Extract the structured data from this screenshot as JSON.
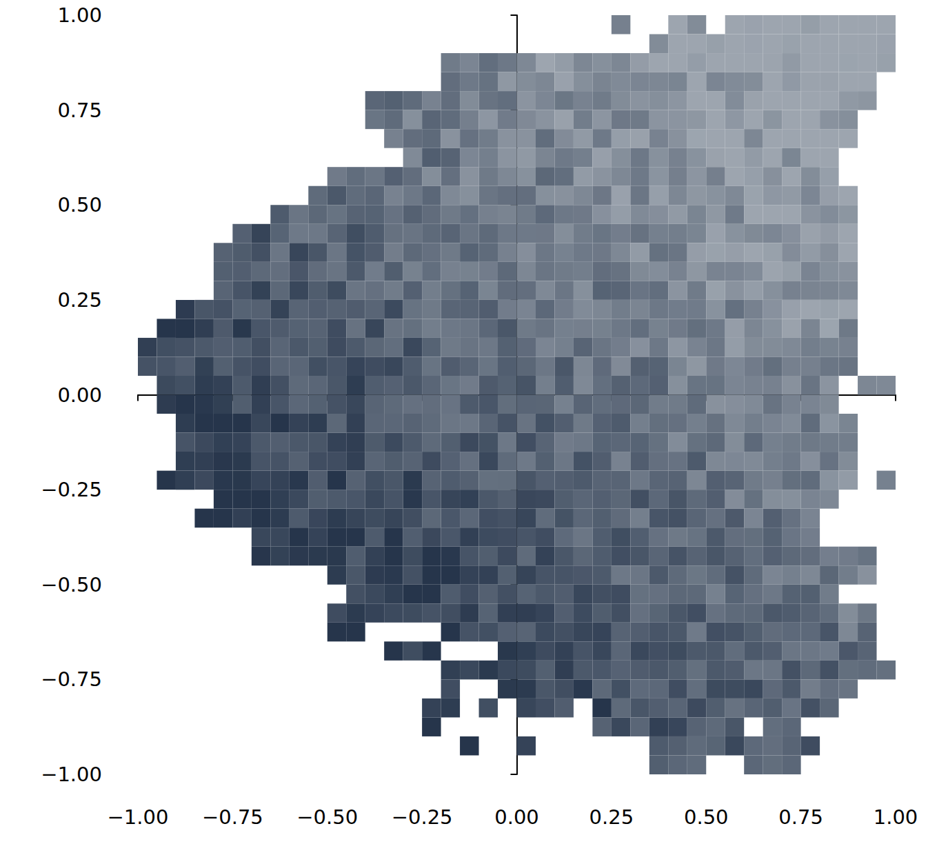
{
  "chart_data": {
    "type": "image_grid",
    "cell_size": 0.05,
    "color": "#26354b",
    "grid": false,
    "xlim": [
      -1,
      1
    ],
    "ylim": [
      -1,
      1
    ],
    "xticks": [
      {
        "value": -1,
        "label": "−1.00"
      },
      {
        "value": -0.75,
        "label": "−0.75"
      },
      {
        "value": -0.5,
        "label": "−0.50"
      },
      {
        "value": -0.25,
        "label": "−0.25"
      },
      {
        "value": 0,
        "label": "0.00"
      },
      {
        "value": 0.25,
        "label": "0.25"
      },
      {
        "value": 0.5,
        "label": "0.50"
      },
      {
        "value": 0.75,
        "label": "0.75"
      },
      {
        "value": 1,
        "label": "1.00"
      }
    ],
    "yticks": [
      {
        "value": -1,
        "label": "−1.00"
      },
      {
        "value": -0.75,
        "label": "−0.75"
      },
      {
        "value": -0.5,
        "label": "−0.50"
      },
      {
        "value": -0.25,
        "label": "−0.25"
      },
      {
        "value": 0,
        "label": "0.00"
      },
      {
        "value": 0.25,
        "label": "0.25"
      },
      {
        "value": 0.5,
        "label": "0.50"
      },
      {
        "value": 0.75,
        "label": "0.75"
      },
      {
        "value": 1,
        "label": "1.00"
      }
    ],
    "rows": [
      {
        "y": 0.975,
        "runs": [
          [
            0.275,
            0.275
          ],
          [
            0.425,
            0.475
          ],
          [
            0.575,
            0.975
          ]
        ]
      },
      {
        "y": 0.925,
        "runs": [
          [
            0.375,
            0.975
          ]
        ]
      },
      {
        "y": 0.875,
        "runs": [
          [
            -0.175,
            0.975
          ]
        ]
      },
      {
        "y": 0.825,
        "runs": [
          [
            -0.175,
            0.925
          ]
        ]
      },
      {
        "y": 0.775,
        "runs": [
          [
            -0.375,
            0.925
          ]
        ]
      },
      {
        "y": 0.725,
        "runs": [
          [
            -0.375,
            0.875
          ]
        ]
      },
      {
        "y": 0.675,
        "runs": [
          [
            -0.325,
            0.875
          ]
        ]
      },
      {
        "y": 0.625,
        "runs": [
          [
            -0.275,
            0.825
          ]
        ]
      },
      {
        "y": 0.575,
        "runs": [
          [
            -0.475,
            0.825
          ]
        ]
      },
      {
        "y": 0.525,
        "runs": [
          [
            -0.525,
            0.775
          ],
          [
            0.825,
            0.875
          ]
        ]
      },
      {
        "y": 0.475,
        "runs": [
          [
            -0.625,
            0.875
          ]
        ]
      },
      {
        "y": 0.425,
        "runs": [
          [
            -0.725,
            0.875
          ]
        ]
      },
      {
        "y": 0.375,
        "runs": [
          [
            -0.775,
            0.875
          ]
        ]
      },
      {
        "y": 0.325,
        "runs": [
          [
            -0.775,
            0.875
          ]
        ]
      },
      {
        "y": 0.275,
        "runs": [
          [
            -0.775,
            0.875
          ]
        ]
      },
      {
        "y": 0.225,
        "runs": [
          [
            -0.875,
            0.875
          ]
        ]
      },
      {
        "y": 0.175,
        "runs": [
          [
            -0.925,
            0.875
          ]
        ]
      },
      {
        "y": 0.125,
        "runs": [
          [
            -0.975,
            0.875
          ]
        ]
      },
      {
        "y": 0.075,
        "runs": [
          [
            -0.975,
            0.875
          ]
        ]
      },
      {
        "y": 0.025,
        "runs": [
          [
            -0.925,
            0.825
          ],
          [
            0.925,
            0.975
          ]
        ]
      },
      {
        "y": -0.025,
        "runs": [
          [
            -0.925,
            0.825
          ]
        ]
      },
      {
        "y": -0.075,
        "runs": [
          [
            -0.875,
            0.825
          ],
          [
            0.875,
            0.875
          ]
        ]
      },
      {
        "y": -0.125,
        "runs": [
          [
            -0.875,
            0.875
          ]
        ]
      },
      {
        "y": -0.175,
        "runs": [
          [
            -0.875,
            0.875
          ]
        ]
      },
      {
        "y": -0.225,
        "runs": [
          [
            -0.925,
            0.875
          ],
          [
            0.975,
            0.975
          ]
        ]
      },
      {
        "y": -0.275,
        "runs": [
          [
            -0.775,
            0.825
          ]
        ]
      },
      {
        "y": -0.325,
        "runs": [
          [
            -0.825,
            0.775
          ]
        ]
      },
      {
        "y": -0.375,
        "runs": [
          [
            -0.675,
            0.775
          ]
        ]
      },
      {
        "y": -0.425,
        "runs": [
          [
            -0.675,
            0.925
          ]
        ]
      },
      {
        "y": -0.475,
        "runs": [
          [
            -0.475,
            0.925
          ]
        ]
      },
      {
        "y": -0.525,
        "runs": [
          [
            -0.425,
            0.825
          ]
        ]
      },
      {
        "y": -0.575,
        "runs": [
          [
            -0.475,
            0.925
          ]
        ]
      },
      {
        "y": -0.625,
        "runs": [
          [
            -0.475,
            -0.425
          ],
          [
            -0.175,
            0.925
          ]
        ]
      },
      {
        "y": -0.675,
        "runs": [
          [
            -0.325,
            -0.225
          ],
          [
            -0.025,
            0.925
          ]
        ]
      },
      {
        "y": -0.725,
        "runs": [
          [
            -0.175,
            -0.175
          ],
          [
            -0.125,
            0.975
          ]
        ]
      },
      {
        "y": -0.775,
        "runs": [
          [
            -0.175,
            -0.175
          ],
          [
            -0.025,
            0.875
          ]
        ]
      },
      {
        "y": -0.825,
        "runs": [
          [
            -0.225,
            -0.175
          ],
          [
            -0.075,
            -0.075
          ],
          [
            0.025,
            0.125
          ],
          [
            0.225,
            0.825
          ]
        ]
      },
      {
        "y": -0.875,
        "runs": [
          [
            -0.225,
            -0.225
          ],
          [
            0.225,
            0.575
          ],
          [
            0.675,
            0.725
          ]
        ]
      },
      {
        "y": -0.925,
        "runs": [
          [
            -0.125,
            -0.125
          ],
          [
            0.025,
            0.025
          ],
          [
            0.375,
            0.775
          ]
        ]
      },
      {
        "y": -0.975,
        "runs": [
          [
            0.375,
            0.475
          ],
          [
            0.625,
            0.725
          ]
        ]
      }
    ]
  }
}
